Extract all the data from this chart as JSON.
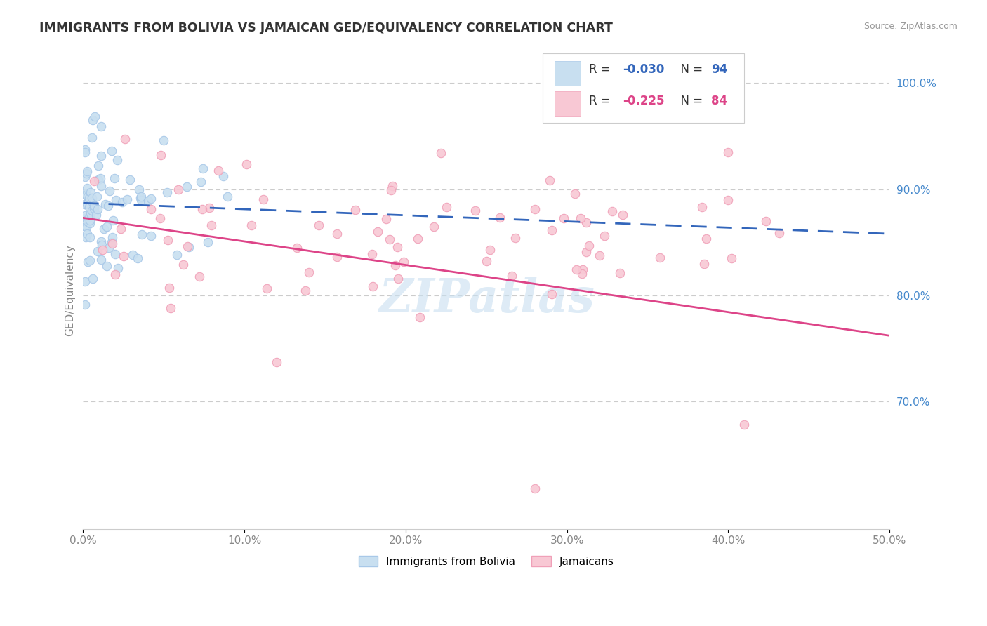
{
  "title": "IMMIGRANTS FROM BOLIVIA VS JAMAICAN GED/EQUIVALENCY CORRELATION CHART",
  "source": "Source: ZipAtlas.com",
  "ylabel": "GED/Equivalency",
  "xlim": [
    0.0,
    0.5
  ],
  "ylim": [
    0.58,
    1.03
  ],
  "yticks": [
    0.7,
    0.8,
    0.9,
    1.0
  ],
  "xticks": [
    0.0,
    0.1,
    0.2,
    0.3,
    0.4,
    0.5
  ],
  "xtick_labels": [
    "0.0%",
    "10.0%",
    "20.0%",
    "30.0%",
    "40.0%",
    "50.0%"
  ],
  "ytick_labels": [
    "70.0%",
    "80.0%",
    "90.0%",
    "100.0%"
  ],
  "bolivia_color": "#a8c8e8",
  "bolivia_face": "#c8dff0",
  "jamaica_color": "#f0a0b8",
  "jamaica_face": "#f8c8d4",
  "bolivia_R": -0.03,
  "bolivia_N": 94,
  "jamaica_R": -0.225,
  "jamaica_N": 84,
  "bolivia_line_color": "#3366bb",
  "jamaica_line_color": "#dd4488",
  "legend_label_bolivia": "Immigrants from Bolivia",
  "legend_label_jamaica": "Jamaicans",
  "watermark": "ZIPatlas",
  "title_color": "#333333",
  "source_color": "#999999",
  "tick_color_x": "#888888",
  "tick_color_y": "#4488cc",
  "ylabel_color": "#888888",
  "grid_color": "#cccccc"
}
